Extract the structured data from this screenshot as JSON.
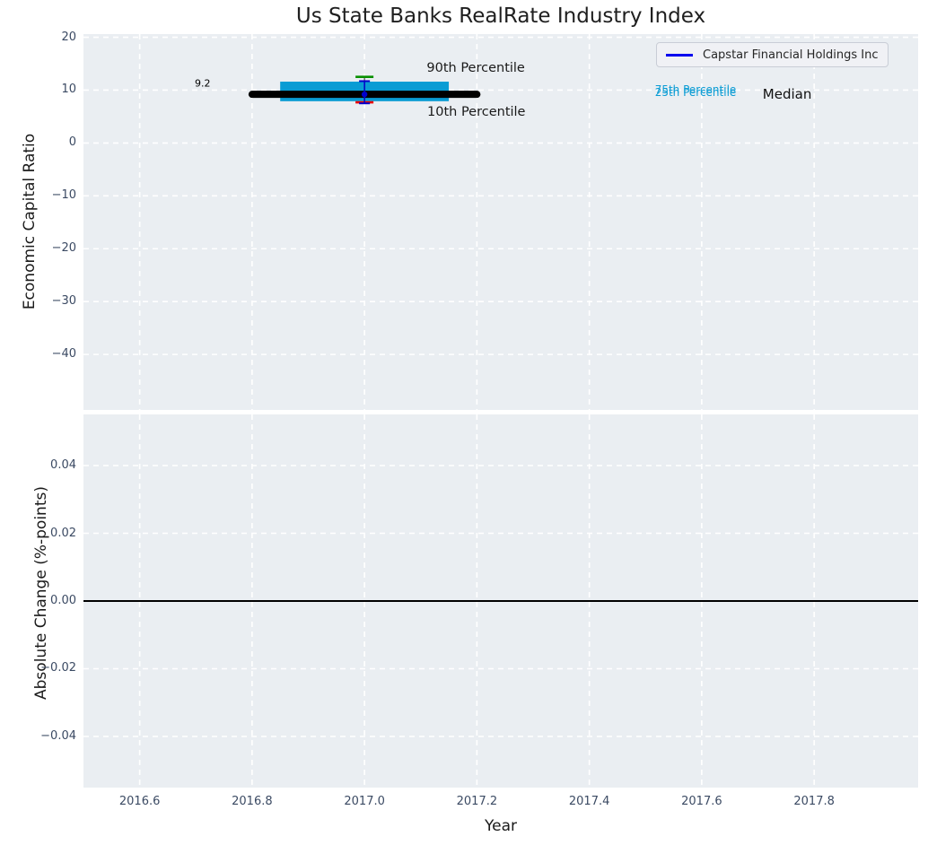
{
  "chart_data": {
    "type": "errorbar",
    "title": "Us State Banks RealRate Industry Index",
    "legend": {
      "label": "Capstar Financial Holdings Inc",
      "position": "upper right"
    },
    "x": {
      "label": "Year",
      "lim": [
        2016.5,
        2017.985
      ],
      "ticks": [
        2016.6,
        2016.8,
        2017.0,
        2017.2,
        2017.4,
        2017.6,
        2017.8
      ],
      "ticklabels": [
        "2016.6",
        "2016.8",
        "2017.0",
        "2017.2",
        "2017.4",
        "2017.6",
        "2017.8"
      ],
      "grid": true
    },
    "top": {
      "ylabel": "Economic Capital Ratio",
      "ylim": [
        -50.5,
        20.6
      ],
      "yticks": [
        20,
        10,
        0,
        -10,
        -20,
        -30,
        -40
      ],
      "yticklabels": [
        "20",
        "10",
        "0",
        "−10",
        "−20",
        "−30",
        "−40"
      ],
      "grid": true,
      "industry": {
        "year": 2017.0,
        "median": 9.2,
        "median_span_years": [
          2016.8,
          2017.2
        ],
        "p75": 11.6,
        "p25": 7.9,
        "box_span_years": [
          2016.85,
          2017.15
        ],
        "p90": 12.5,
        "p10": 7.7
      },
      "company": {
        "year": 2017.0,
        "value": 9.2,
        "ci_low": 7.5,
        "ci_high": 11.7
      },
      "annotations": [
        {
          "text": "9.2",
          "x": 2016.712,
          "y": 11.35,
          "color": "#000000",
          "size": 11
        },
        {
          "text": "90th Percentile",
          "x": 2017.198,
          "y": 14.2,
          "color": "#1a1a1a",
          "size": 14.5
        },
        {
          "text": "10th Percentile",
          "x": 2017.199,
          "y": 5.8,
          "color": "#1a1a1a",
          "size": 14.5
        },
        {
          "text": "75th Percentile",
          "x": 2017.589,
          "y": 10.15,
          "color": "#0a9cd4",
          "size": 12
        },
        {
          "text": "25th Percentile",
          "x": 2017.589,
          "y": 9.55,
          "color": "#0a9cd4",
          "size": 12
        },
        {
          "text": "Median",
          "x": 2017.752,
          "y": 9.3,
          "color": "#111111",
          "size": 15
        }
      ]
    },
    "bottom": {
      "ylabel": "Absolute Change (%-points)",
      "ylim": [
        -0.0551,
        0.0551
      ],
      "yticks": [
        0.04,
        0.02,
        0.0,
        -0.02,
        -0.04
      ],
      "yticklabels": [
        "0.04",
        "0.02",
        "0.00",
        "−0.02",
        "−0.04"
      ],
      "grid": true,
      "zero_line": 0.0
    },
    "colors": {
      "plot_background": "#eaeef2",
      "grid": "#ffffff",
      "tick_label": "#3b4a63",
      "box": "#0a9cd4",
      "median": "#000000",
      "p90_cap": "#089000",
      "p10_cap": "#e80000",
      "whisker": "#4a4a4a",
      "company": "#0000cd",
      "legend_line": "#0000ee",
      "zero_line": "#000000"
    }
  }
}
